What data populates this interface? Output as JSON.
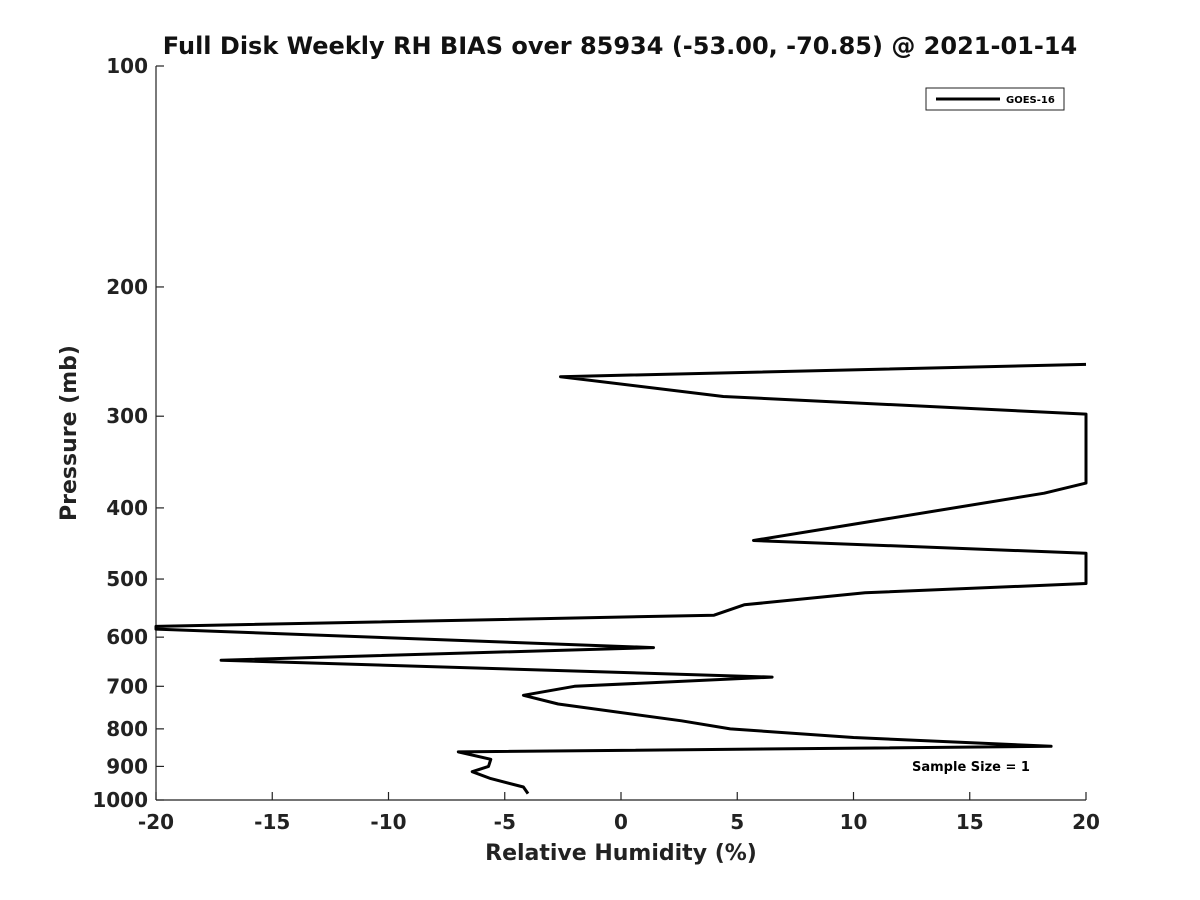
{
  "chart_data": {
    "type": "line",
    "title": "Full Disk Weekly RH BIAS over 85934 (-53.00, -70.85) @ 2021-01-14",
    "xlabel": "Relative Humidity (%)",
    "ylabel": "Pressure (mb)",
    "xlim": [
      -20,
      20
    ],
    "ylim": [
      100,
      1000
    ],
    "y_scale": "log",
    "y_inverted": true,
    "x_ticks": [
      -20,
      -15,
      -10,
      -5,
      0,
      5,
      10,
      15,
      20
    ],
    "y_ticks": [
      100,
      200,
      300,
      400,
      500,
      600,
      700,
      800,
      900,
      1000
    ],
    "grid": false,
    "legend": {
      "placement": "top-right",
      "entries": [
        "GOES-16"
      ]
    },
    "annotations": [
      "Sample Size = 1"
    ],
    "series_color": "#000000",
    "series": [
      {
        "name": "GOES-16",
        "points": [
          {
            "x": 20,
            "y": 255
          },
          {
            "x": -2.6,
            "y": 265
          },
          {
            "x": 4.4,
            "y": 282
          },
          {
            "x": 20,
            "y": 298
          },
          {
            "x": 20,
            "y": 370
          },
          {
            "x": 18.2,
            "y": 382
          },
          {
            "x": 10.2,
            "y": 420
          },
          {
            "x": 5.7,
            "y": 443
          },
          {
            "x": 20,
            "y": 461
          },
          {
            "x": 20,
            "y": 507
          },
          {
            "x": 10.5,
            "y": 522
          },
          {
            "x": 5.3,
            "y": 542
          },
          {
            "x": 4.0,
            "y": 560
          },
          {
            "x": -20,
            "y": 580
          },
          {
            "x": -20,
            "y": 585
          },
          {
            "x": 1.4,
            "y": 620
          },
          {
            "x": -17.2,
            "y": 645
          },
          {
            "x": 6.5,
            "y": 680
          },
          {
            "x": -2.0,
            "y": 700
          },
          {
            "x": -4.2,
            "y": 720
          },
          {
            "x": -2.7,
            "y": 740
          },
          {
            "x": 2.6,
            "y": 780
          },
          {
            "x": 4.7,
            "y": 800
          },
          {
            "x": 10.0,
            "y": 822
          },
          {
            "x": 18.5,
            "y": 845
          },
          {
            "x": -7.0,
            "y": 860
          },
          {
            "x": -5.6,
            "y": 880
          },
          {
            "x": -5.7,
            "y": 900
          },
          {
            "x": -6.4,
            "y": 915
          },
          {
            "x": -5.6,
            "y": 935
          },
          {
            "x": -4.2,
            "y": 960
          },
          {
            "x": -4.0,
            "y": 980
          }
        ]
      }
    ]
  }
}
